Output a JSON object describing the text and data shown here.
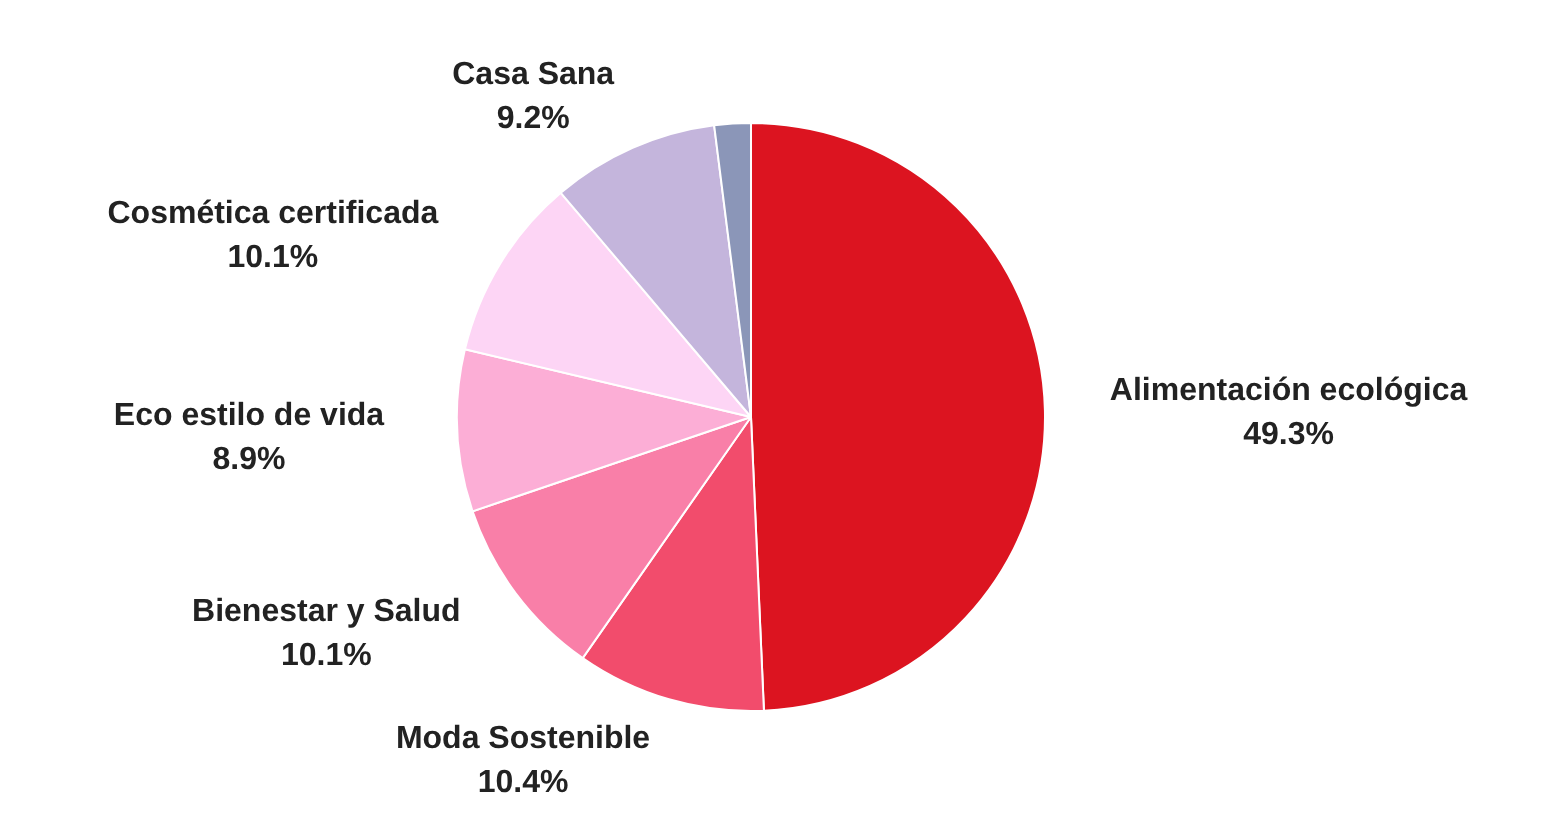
{
  "chart_data": {
    "type": "pie",
    "categories": [
      "Alimentación ecológica",
      "Moda Sostenible",
      "Bienestar y Salud",
      "Eco estilo de vida",
      "Cosmética certificada",
      "Casa Sana",
      null
    ],
    "values": [
      49.3,
      10.4,
      10.1,
      8.9,
      10.1,
      9.2,
      2.0
    ],
    "value_labels": [
      "49.3%",
      "10.4%",
      "10.1%",
      "8.9%",
      "10.1%",
      "9.2%",
      null
    ],
    "colors": [
      "#dc1420",
      "#f24c6c",
      "#f97fa8",
      "#fcaed6",
      "#fdd5f5",
      "#c4b5dc",
      "#8b96b8"
    ]
  }
}
